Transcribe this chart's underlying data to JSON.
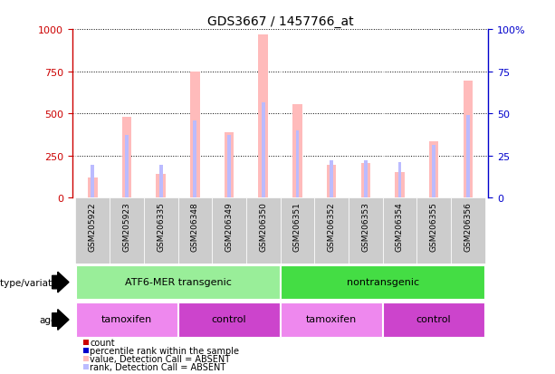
{
  "title": "GDS3667 / 1457766_at",
  "samples": [
    "GSM205922",
    "GSM205923",
    "GSM206335",
    "GSM206348",
    "GSM206349",
    "GSM206350",
    "GSM206351",
    "GSM206352",
    "GSM206353",
    "GSM206354",
    "GSM206355",
    "GSM206356"
  ],
  "absent_value_bars": [
    120,
    480,
    140,
    750,
    390,
    970,
    555,
    195,
    205,
    155,
    335,
    695
  ],
  "absent_rank_bars": [
    195,
    375,
    195,
    460,
    375,
    565,
    400,
    225,
    220,
    210,
    315,
    490
  ],
  "ylim_left": [
    0,
    1000
  ],
  "ylim_right": [
    0,
    100
  ],
  "yticks_left": [
    0,
    250,
    500,
    750,
    1000
  ],
  "yticks_right": [
    0,
    25,
    50,
    75,
    100
  ],
  "left_axis_color": "#cc0000",
  "right_axis_color": "#0000cc",
  "absent_value_color": "#ffbbbb",
  "absent_rank_color": "#bbbbff",
  "genotype_groups": [
    {
      "text": "ATF6-MER transgenic",
      "start": 0,
      "end": 5,
      "color": "#99ee99"
    },
    {
      "text": "nontransgenic",
      "start": 6,
      "end": 11,
      "color": "#44dd44"
    }
  ],
  "agent_groups": [
    {
      "text": "tamoxifen",
      "start": 0,
      "end": 2,
      "color": "#ee88ee"
    },
    {
      "text": "control",
      "start": 3,
      "end": 5,
      "color": "#cc44cc"
    },
    {
      "text": "tamoxifen",
      "start": 6,
      "end": 8,
      "color": "#ee88ee"
    },
    {
      "text": "control",
      "start": 9,
      "end": 11,
      "color": "#cc44cc"
    }
  ],
  "genotype_label": "genotype/variation",
  "agent_label": "agent",
  "legend": [
    {
      "label": "count",
      "color": "#cc0000"
    },
    {
      "label": "percentile rank within the sample",
      "color": "#0000cc"
    },
    {
      "label": "value, Detection Call = ABSENT",
      "color": "#ffbbbb"
    },
    {
      "label": "rank, Detection Call = ABSENT",
      "color": "#bbbbff"
    }
  ]
}
